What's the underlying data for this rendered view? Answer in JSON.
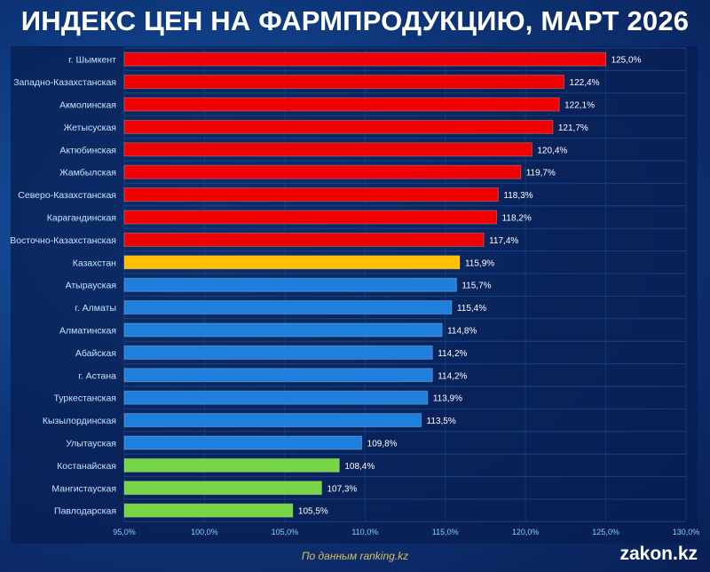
{
  "chart_data": {
    "type": "bar",
    "orientation": "horizontal",
    "title": "ИНДЕКС ЦЕН НА ФАРМПРОДУКЦИЮ, МАРТ 2026",
    "categories": [
      "г. Шымкент",
      "Западно-Казахстанская",
      "Акмолинская",
      "Жетысуская",
      "Актюбинская",
      "Жамбылская",
      "Северо-Казахстанская",
      "Карагандинская",
      "Восточно-Казахстанская",
      "Казахстан",
      "Атырауская",
      "г. Алматы",
      "Алматинская",
      "Абайская",
      "г. Астана",
      "Туркестанская",
      "Кызылординская",
      "Улытауская",
      "Костанайская",
      "Мангистауская",
      "Павлодарская"
    ],
    "values": [
      125.0,
      122.4,
      122.1,
      121.7,
      120.4,
      119.7,
      118.3,
      118.2,
      117.4,
      115.9,
      115.7,
      115.4,
      114.8,
      114.2,
      114.2,
      113.9,
      113.5,
      109.8,
      108.4,
      107.3,
      105.5
    ],
    "data_labels": [
      "125,0%",
      "122,4%",
      "122,1%",
      "121,7%",
      "120,4%",
      "119,7%",
      "118,3%",
      "118,2%",
      "117,4%",
      "115,9%",
      "115,7%",
      "115,4%",
      "114,8%",
      "114,2%",
      "114,2%",
      "113,9%",
      "113,5%",
      "109,8%",
      "108,4%",
      "107,3%",
      "105,5%"
    ],
    "colors": [
      "#f00000",
      "#f00000",
      "#f00000",
      "#f00000",
      "#f00000",
      "#f00000",
      "#f00000",
      "#f00000",
      "#f00000",
      "#ffc000",
      "#1e7fdc",
      "#1e7fdc",
      "#1e7fdc",
      "#1e7fdc",
      "#1e7fdc",
      "#1e7fdc",
      "#1e7fdc",
      "#1e7fdc",
      "#77d445",
      "#77d445",
      "#77d445"
    ],
    "xlim": [
      95,
      130
    ],
    "xticks": [
      95,
      100,
      105,
      110,
      115,
      120,
      125,
      130
    ],
    "xtick_labels": [
      "95,0%",
      "100,0%",
      "105,0%",
      "110,0%",
      "115,0%",
      "120,0%",
      "125,0%",
      "130,0%"
    ],
    "grid": true
  },
  "footer": {
    "source": "По данным ranking.kz",
    "logo": "zakon.kz"
  }
}
